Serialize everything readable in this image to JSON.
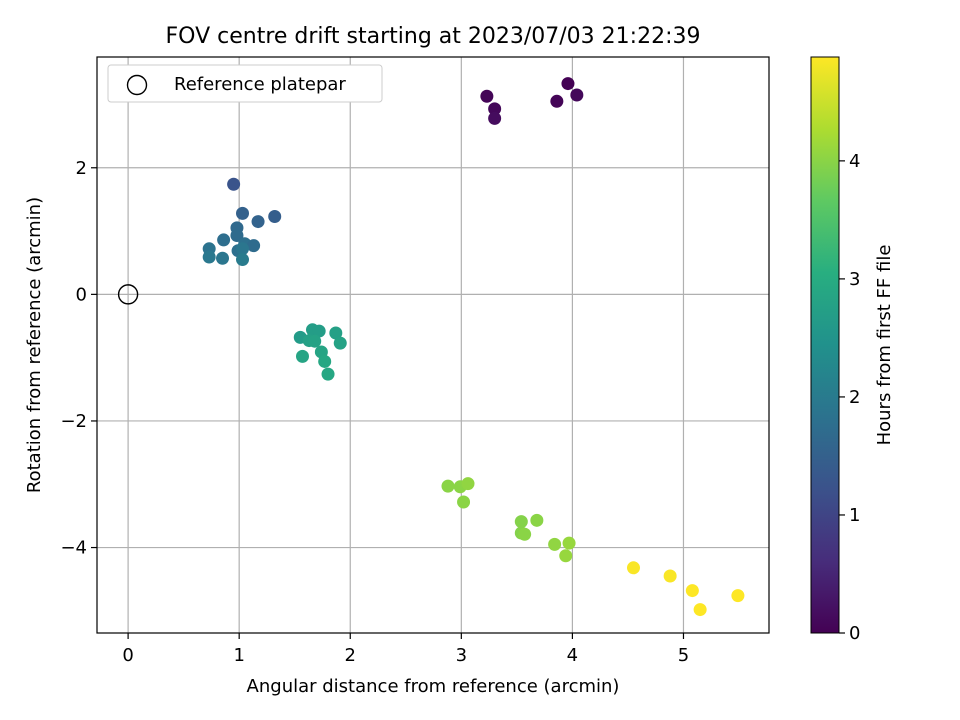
{
  "chart_data": {
    "type": "scatter",
    "title": "FOV centre drift starting at 2023/07/03 21:22:39",
    "xlabel": "Angular distance from reference (arcmin)",
    "ylabel": "Rotation from reference (arcmin)",
    "xlim": [
      -0.28,
      5.77
    ],
    "ylim": [
      -5.35,
      3.75
    ],
    "xticks": [
      0,
      1,
      2,
      3,
      4,
      5
    ],
    "xtick_labels": [
      "0",
      "1",
      "2",
      "3",
      "4",
      "5"
    ],
    "yticks": [
      -4,
      -2,
      0,
      2
    ],
    "ytick_labels": [
      "−4",
      "−2",
      "0",
      "2"
    ],
    "grid": true,
    "legend": {
      "placement": "top-left",
      "entries": [
        "Reference platepar"
      ]
    },
    "reference_point": {
      "x": 0,
      "y": 0,
      "label": "Reference platepar"
    },
    "colorbar": {
      "label": "Hours from first FF file",
      "colormap": "viridis",
      "range": [
        0,
        4.88
      ],
      "ticks": [
        0,
        1,
        2,
        3,
        4
      ],
      "tick_labels": [
        "0",
        "1",
        "2",
        "3",
        "4"
      ]
    },
    "points": [
      {
        "x": 3.23,
        "y": 3.13,
        "t": 0.05
      },
      {
        "x": 3.3,
        "y": 2.93,
        "t": 0.1
      },
      {
        "x": 3.3,
        "y": 2.78,
        "t": 0.15
      },
      {
        "x": 3.86,
        "y": 3.05,
        "t": 0.05
      },
      {
        "x": 3.96,
        "y": 3.33,
        "t": 0.0
      },
      {
        "x": 4.04,
        "y": 3.15,
        "t": 0.1
      },
      {
        "x": 0.95,
        "y": 1.74,
        "t": 1.25
      },
      {
        "x": 1.03,
        "y": 1.28,
        "t": 1.5
      },
      {
        "x": 1.32,
        "y": 1.23,
        "t": 1.45
      },
      {
        "x": 1.17,
        "y": 1.15,
        "t": 1.55
      },
      {
        "x": 0.98,
        "y": 1.05,
        "t": 1.65
      },
      {
        "x": 0.98,
        "y": 0.93,
        "t": 1.7
      },
      {
        "x": 0.86,
        "y": 0.86,
        "t": 1.75
      },
      {
        "x": 1.05,
        "y": 0.8,
        "t": 1.8
      },
      {
        "x": 1.13,
        "y": 0.77,
        "t": 1.7
      },
      {
        "x": 0.73,
        "y": 0.72,
        "t": 1.85
      },
      {
        "x": 0.99,
        "y": 0.69,
        "t": 1.8
      },
      {
        "x": 1.03,
        "y": 0.72,
        "t": 1.9
      },
      {
        "x": 0.73,
        "y": 0.59,
        "t": 1.95
      },
      {
        "x": 0.85,
        "y": 0.57,
        "t": 1.9
      },
      {
        "x": 1.03,
        "y": 0.55,
        "t": 2.0
      },
      {
        "x": 1.55,
        "y": -0.68,
        "t": 2.65
      },
      {
        "x": 1.66,
        "y": -0.56,
        "t": 2.7
      },
      {
        "x": 1.72,
        "y": -0.58,
        "t": 2.7
      },
      {
        "x": 1.87,
        "y": -0.61,
        "t": 2.75
      },
      {
        "x": 1.63,
        "y": -0.73,
        "t": 2.75
      },
      {
        "x": 1.68,
        "y": -0.74,
        "t": 2.8
      },
      {
        "x": 1.91,
        "y": -0.77,
        "t": 2.8
      },
      {
        "x": 1.57,
        "y": -0.98,
        "t": 2.85
      },
      {
        "x": 1.74,
        "y": -0.91,
        "t": 2.85
      },
      {
        "x": 1.77,
        "y": -1.06,
        "t": 2.9
      },
      {
        "x": 1.8,
        "y": -1.26,
        "t": 2.9
      },
      {
        "x": 2.88,
        "y": -3.03,
        "t": 4.0
      },
      {
        "x": 2.99,
        "y": -3.04,
        "t": 4.0
      },
      {
        "x": 3.06,
        "y": -2.99,
        "t": 4.05
      },
      {
        "x": 3.02,
        "y": -3.28,
        "t": 4.0
      },
      {
        "x": 3.54,
        "y": -3.59,
        "t": 3.95
      },
      {
        "x": 3.68,
        "y": -3.57,
        "t": 4.0
      },
      {
        "x": 3.54,
        "y": -3.77,
        "t": 3.95
      },
      {
        "x": 3.57,
        "y": -3.79,
        "t": 4.0
      },
      {
        "x": 3.84,
        "y": -3.95,
        "t": 4.05
      },
      {
        "x": 3.97,
        "y": -3.93,
        "t": 4.1
      },
      {
        "x": 3.94,
        "y": -4.13,
        "t": 4.1
      },
      {
        "x": 4.55,
        "y": -4.32,
        "t": 4.85
      },
      {
        "x": 4.88,
        "y": -4.45,
        "t": 4.85
      },
      {
        "x": 5.08,
        "y": -4.68,
        "t": 4.88
      },
      {
        "x": 5.15,
        "y": -4.98,
        "t": 4.88
      },
      {
        "x": 5.49,
        "y": -4.76,
        "t": 4.88
      }
    ]
  }
}
